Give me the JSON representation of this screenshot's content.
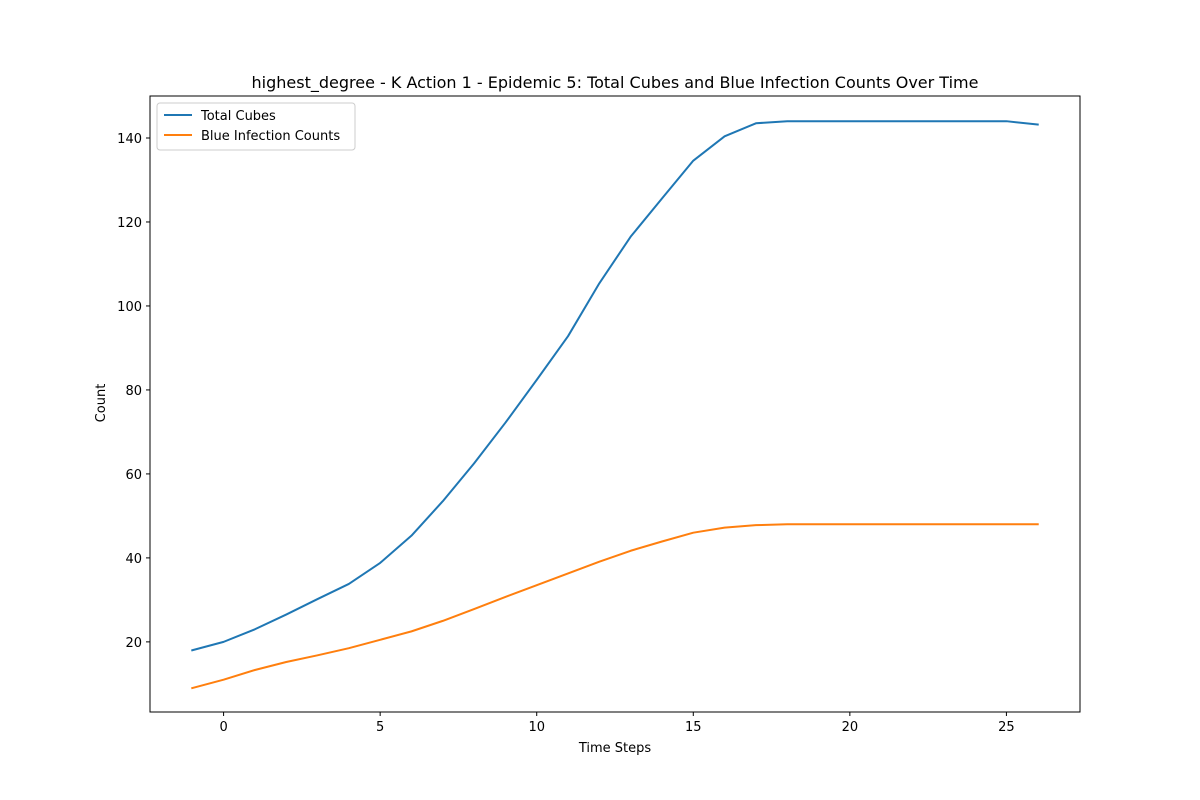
{
  "chart_data": {
    "type": "line",
    "title": "highest_degree - K Action 1 - Epidemic 5: Total Cubes and Blue Infection Counts Over Time",
    "xlabel": "Time Steps",
    "ylabel": "Count",
    "x": [
      -1,
      0,
      1,
      2,
      3,
      4,
      5,
      6,
      7,
      8,
      9,
      10,
      11,
      12,
      13,
      14,
      15,
      16,
      17,
      18,
      19,
      20,
      21,
      22,
      23,
      24,
      25,
      26
    ],
    "xlim": [
      -2.35,
      27.35
    ],
    "ylim": [
      3.3,
      150
    ],
    "xticks": [
      0,
      5,
      10,
      15,
      20,
      25
    ],
    "yticks": [
      20,
      40,
      60,
      80,
      100,
      120,
      140
    ],
    "grid": false,
    "legend_position": "upper-left",
    "series": [
      {
        "name": "Total Cubes",
        "color": "#1f77b4",
        "values": [
          18,
          20,
          23,
          26.5,
          30.2,
          33.8,
          38.8,
          45.3,
          53.5,
          62.5,
          72.2,
          82.4,
          92.8,
          105.4,
          116.5,
          125.6,
          134.6,
          140.4,
          143.5,
          144,
          144,
          144,
          144,
          144,
          144,
          144,
          144,
          143.2
        ]
      },
      {
        "name": "Blue Infection Counts",
        "color": "#ff7f0e",
        "values": [
          9,
          11,
          13.3,
          15.2,
          16.8,
          18.5,
          20.5,
          22.5,
          25,
          27.8,
          30.7,
          33.5,
          36.3,
          39.1,
          41.7,
          43.9,
          46,
          47.2,
          47.8,
          48,
          48,
          48,
          48,
          48,
          48,
          48,
          48,
          48
        ]
      }
    ]
  }
}
